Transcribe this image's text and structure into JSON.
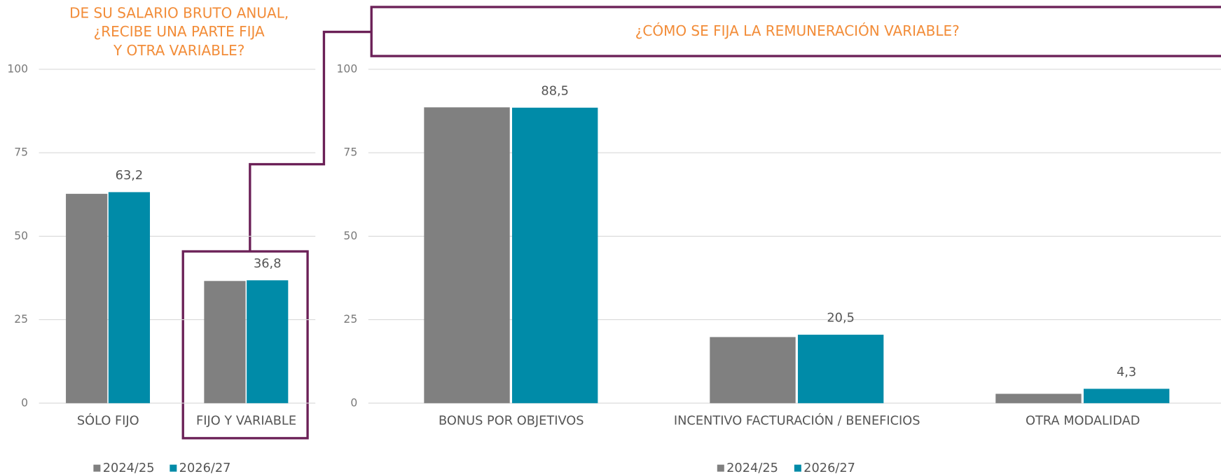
{
  "chart_data": [
    {
      "type": "bar",
      "title": [
        "DE SU SALARIO BRUTO ANUAL,",
        "¿RECIBE UNA PARTE FIJA",
        "Y OTRA VARIABLE?"
      ],
      "categories": [
        "SÓLO FIJO",
        "FIJO Y VARIABLE"
      ],
      "series": [
        {
          "name": "2024/25",
          "color": "#808080",
          "values": [
            62.7,
            36.6
          ]
        },
        {
          "name": "2026/27",
          "color": "#008ba8",
          "values": [
            63.2,
            36.8
          ],
          "value_labels": [
            "63,2",
            "36,8"
          ]
        }
      ],
      "ylim": [
        0,
        100
      ],
      "yticks": [
        0,
        25,
        50,
        75,
        100
      ],
      "grid": true,
      "legend": "bottom"
    },
    {
      "type": "bar",
      "title": [
        "¿CÓMO SE FIJA LA REMUNERACIÓN VARIABLE?"
      ],
      "categories": [
        "BONUS POR OBJETIVOS",
        "INCENTIVO FACTURACIÓN / BENEFICIOS",
        "OTRA MODALIDAD"
      ],
      "series": [
        {
          "name": "2024/25",
          "color": "#808080",
          "values": [
            88.6,
            19.8,
            2.8
          ]
        },
        {
          "name": "2026/27",
          "color": "#008ba8",
          "values": [
            88.5,
            20.5,
            4.3
          ],
          "value_labels": [
            "88,5",
            "20,5",
            "4,3"
          ]
        }
      ],
      "ylim": [
        0,
        100
      ],
      "yticks": [
        0,
        25,
        50,
        75,
        100
      ],
      "grid": true,
      "legend": "bottom"
    }
  ]
}
